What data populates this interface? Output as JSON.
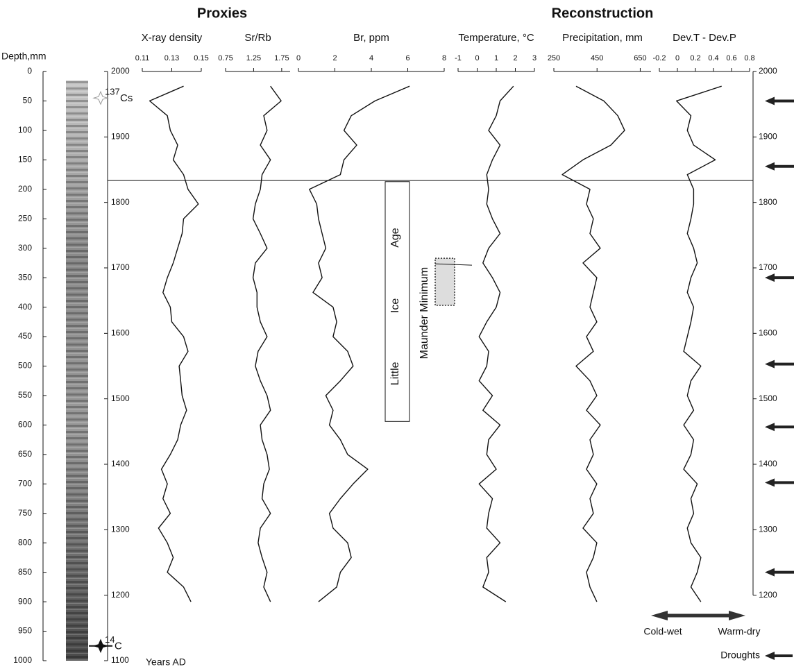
{
  "headings": [
    "Proxies",
    "Reconstruction"
  ],
  "depth_axis": {
    "label": "Depth,mm",
    "ylim": [
      0,
      1000
    ],
    "ticks": [
      0,
      50,
      100,
      150,
      200,
      250,
      300,
      350,
      400,
      450,
      500,
      550,
      600,
      650,
      700,
      750,
      800,
      850,
      900,
      950,
      1000
    ]
  },
  "years_axis": {
    "label": "Years AD",
    "ylim": [
      1100,
      2000
    ],
    "ticks": [
      1100,
      1200,
      1300,
      1400,
      1500,
      1600,
      1700,
      1800,
      1900,
      2000
    ],
    "right_ticks": [
      1200,
      1300,
      1400,
      1500,
      1600,
      1700,
      1800,
      1900,
      2000
    ]
  },
  "depth": [
    25,
    50,
    75,
    100,
    125,
    150,
    175,
    200,
    225,
    250,
    275,
    300,
    325,
    350,
    375,
    400,
    425,
    450,
    475,
    500,
    525,
    550,
    575,
    600,
    625,
    650,
    675,
    700,
    725,
    750,
    775,
    800,
    825,
    850,
    875,
    900
  ],
  "markers": [
    {
      "sup": "137",
      "text": "Cs",
      "depth": 45
    },
    {
      "sup": "14",
      "text": "C",
      "depth": 975
    }
  ],
  "boundary_depth": 185,
  "little_ice_age": {
    "words": [
      "Little",
      "Ice",
      "Age"
    ],
    "depth_range": [
      187,
      594
    ]
  },
  "maunder_minimum": {
    "text": "Maunder Minimum",
    "depth_range": [
      317,
      397
    ]
  },
  "drought_years": [
    1955,
    1855,
    1685,
    1553,
    1457,
    1372,
    1235
  ],
  "legend": {
    "cold": "Cold-wet",
    "warm": "Warm-dry",
    "droughts": "Droughts"
  },
  "chart_data": [
    {
      "type": "line",
      "title": "X-ray density",
      "color": "#111111",
      "xlim": [
        0.11,
        0.15
      ],
      "xticks": [
        0.11,
        0.13,
        0.15
      ],
      "values": [
        0.138,
        0.115,
        0.127,
        0.129,
        0.134,
        0.131,
        0.138,
        0.141,
        0.148,
        0.138,
        0.137,
        0.134,
        0.131,
        0.127,
        0.124,
        0.129,
        0.13,
        0.138,
        0.141,
        0.135,
        0.136,
        0.137,
        0.14,
        0.136,
        0.134,
        0.129,
        0.123,
        0.127,
        0.124,
        0.129,
        0.121,
        0.127,
        0.131,
        0.127,
        0.138,
        0.143
      ]
    },
    {
      "type": "line",
      "title": "Sr/Rb",
      "color": "#111111",
      "xlim": [
        0.75,
        1.9
      ],
      "xticks": [
        0.75,
        1.25,
        1.75
      ],
      "values": [
        1.55,
        1.74,
        1.43,
        1.49,
        1.37,
        1.55,
        1.4,
        1.37,
        1.28,
        1.24,
        1.37,
        1.49,
        1.28,
        1.24,
        1.31,
        1.31,
        1.37,
        1.49,
        1.33,
        1.28,
        1.37,
        1.49,
        1.55,
        1.37,
        1.4,
        1.49,
        1.53,
        1.43,
        1.4,
        1.55,
        1.37,
        1.33,
        1.4,
        1.49,
        1.43,
        1.55
      ]
    },
    {
      "type": "line",
      "title": "Br, ppm",
      "color": "#111111",
      "xlim": [
        0,
        8
      ],
      "xticks": [
        0,
        2,
        4,
        6,
        8
      ],
      "values": [
        6.1,
        4.2,
        2.9,
        2.5,
        3.2,
        2.5,
        2.3,
        0.6,
        1.0,
        1.1,
        1.3,
        1.5,
        1.1,
        1.3,
        0.8,
        1.9,
        2.1,
        1.9,
        2.7,
        3.0,
        2.3,
        1.5,
        1.9,
        1.7,
        2.3,
        2.7,
        3.8,
        3.0,
        2.3,
        1.7,
        1.9,
        2.7,
        2.9,
        2.3,
        2.1,
        1.1
      ]
    },
    {
      "type": "line",
      "title": "Temperature, °C",
      "color": "#111111",
      "xlim": [
        -1,
        3
      ],
      "xticks": [
        -1,
        0,
        1,
        2,
        3
      ],
      "values": [
        1.9,
        1.2,
        1.0,
        0.6,
        1.2,
        0.8,
        0.5,
        0.6,
        0.5,
        0.8,
        1.2,
        0.6,
        0.3,
        0.8,
        1.2,
        1.0,
        0.5,
        0.1,
        0.6,
        0.5,
        0.1,
        0.8,
        0.3,
        1.2,
        0.6,
        0.5,
        1.0,
        0.1,
        0.8,
        0.6,
        0.5,
        1.2,
        0.5,
        0.6,
        0.3,
        1.5
      ]
    },
    {
      "type": "line",
      "title": "Precipitation, mm",
      "color": "#111111",
      "xlim": [
        250,
        700
      ],
      "xticks": [
        250,
        450,
        650
      ],
      "values": [
        353,
        481,
        546,
        578,
        514,
        385,
        289,
        417,
        401,
        433,
        417,
        465,
        385,
        449,
        433,
        417,
        449,
        401,
        433,
        353,
        417,
        449,
        401,
        465,
        417,
        433,
        401,
        449,
        417,
        433,
        385,
        449,
        433,
        401,
        417,
        449
      ]
    },
    {
      "type": "line",
      "title": "Dev.T - Dev.P",
      "color": "#111111",
      "xlim": [
        -0.2,
        0.8
      ],
      "xticks": [
        -0.2,
        0,
        0.2,
        0.4,
        0.6,
        0.8
      ],
      "values": [
        0.49,
        -0.01,
        0.15,
        0.11,
        0.18,
        0.42,
        0.11,
        0.18,
        0.18,
        0.15,
        0.11,
        0.18,
        0.22,
        0.15,
        0.11,
        0.18,
        0.15,
        0.11,
        0.07,
        0.26,
        0.15,
        0.11,
        0.18,
        0.07,
        0.18,
        0.15,
        0.07,
        0.22,
        0.15,
        0.18,
        0.11,
        0.15,
        0.26,
        0.22,
        0.15,
        0.26
      ]
    }
  ]
}
